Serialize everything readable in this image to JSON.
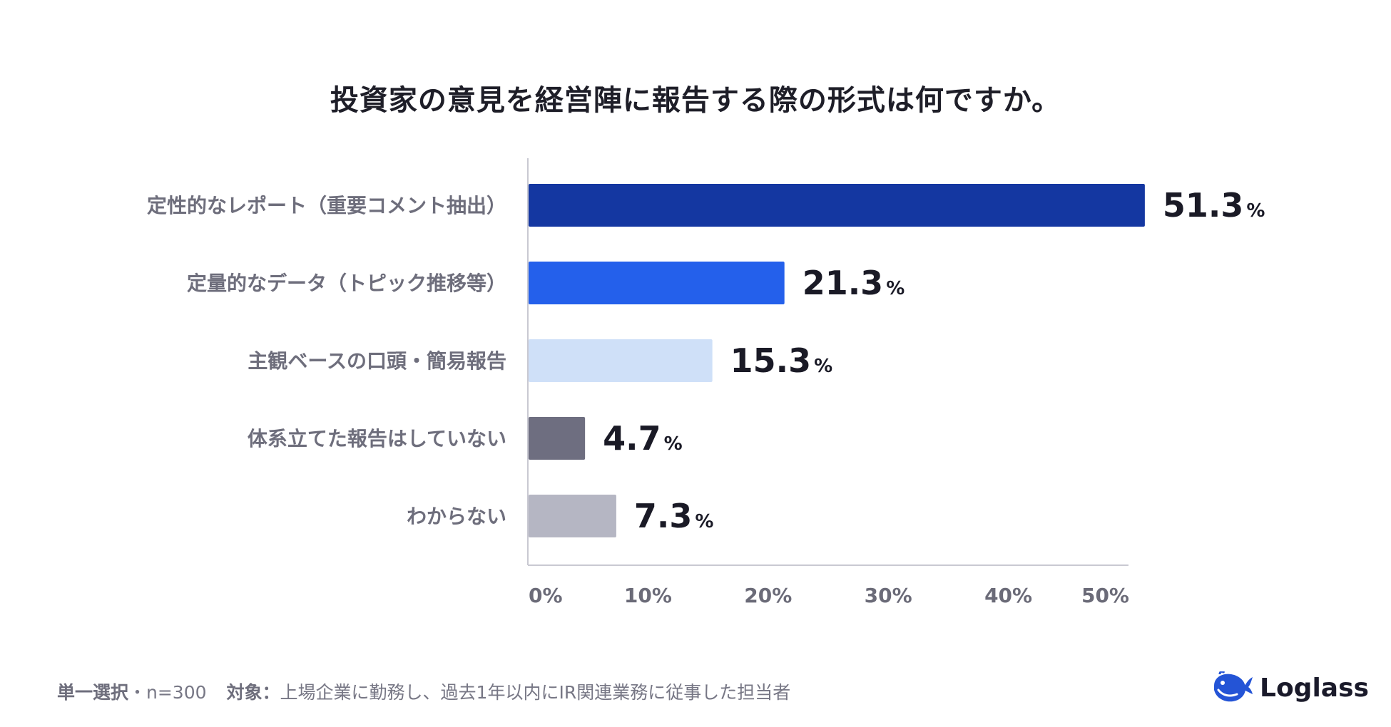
{
  "chart_data": {
    "type": "bar",
    "orientation": "horizontal",
    "title": "投資家の意見を経営陣に報告する際の形式は何ですか。",
    "categories": [
      "定性的なレポート（重要コメント抽出）",
      "定量的なデータ（トピック推移等）",
      "主観ベースの口頭・簡易報告",
      "体系立てた報告はしていない",
      "わからない"
    ],
    "values": [
      51.3,
      21.3,
      15.3,
      4.7,
      7.3
    ],
    "value_labels": [
      "51.3",
      "21.3",
      "15.3",
      "4.7",
      "7.3"
    ],
    "unit": "%",
    "bar_colors": [
      "#1437a1",
      "#2460eb",
      "#cfe0f8",
      "#6e6e80",
      "#b5b6c3"
    ],
    "xlim": [
      0,
      53
    ],
    "xticks": [
      0,
      10,
      20,
      30,
      40,
      50
    ],
    "xtick_labels": [
      "0%",
      "10%",
      "20%",
      "30%",
      "40%",
      "50%"
    ],
    "grid": false,
    "legend": "none"
  },
  "footer": {
    "method_label": "単一選択",
    "method_value": "・n=300",
    "target_label": "対象：",
    "target_value": "上場企業に勤務し、過去1年以内にIR関連業務に従事した担当者"
  },
  "brand": {
    "name": "Loglass",
    "color": "#2454d6",
    "logo_icon": "whale-icon"
  }
}
